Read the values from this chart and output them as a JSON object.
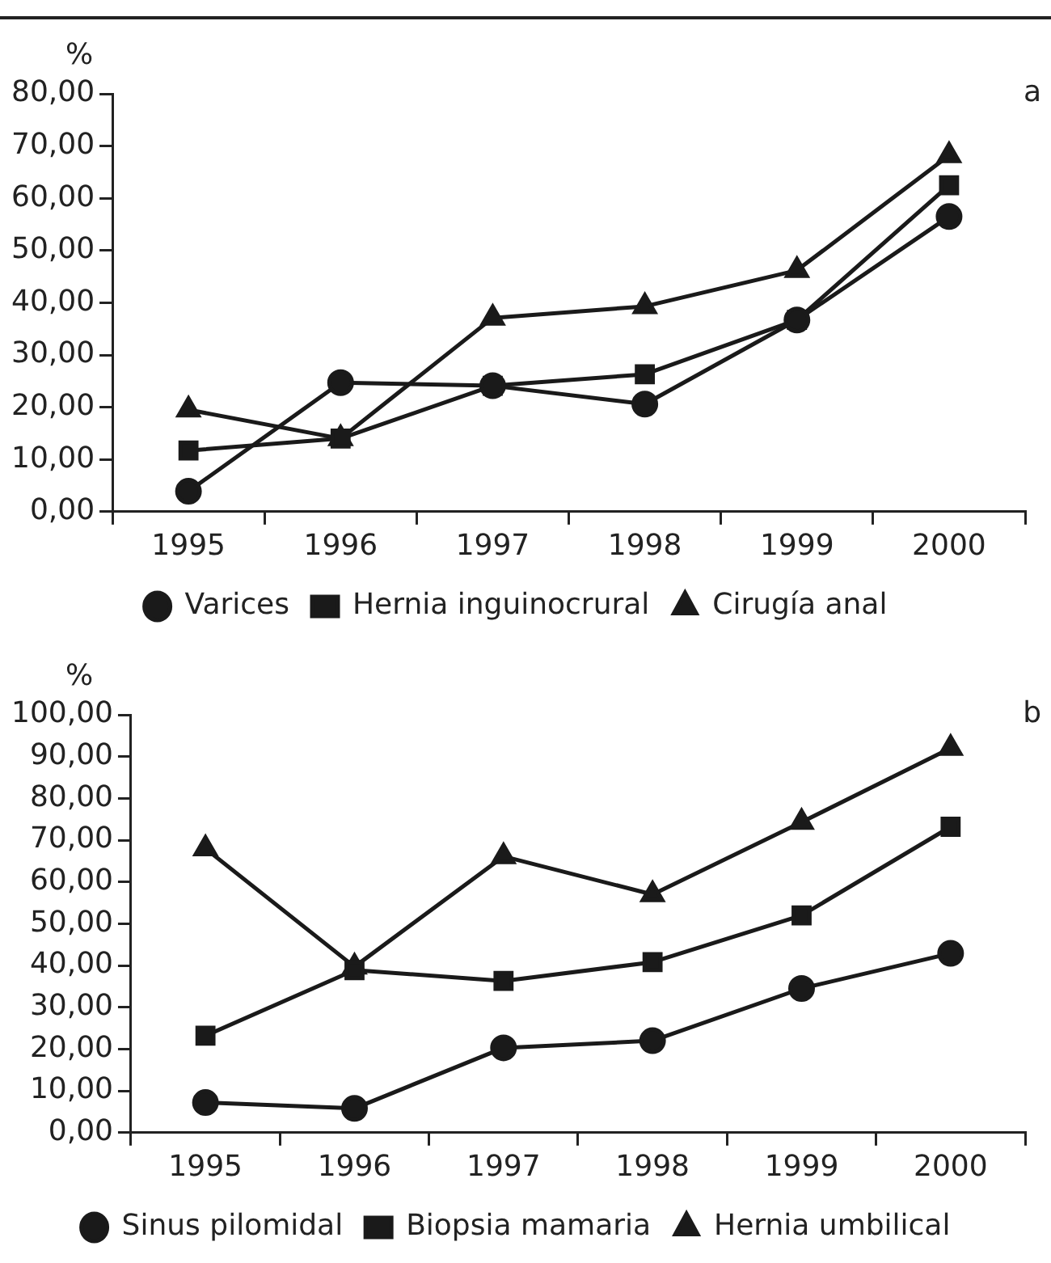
{
  "chart_data": [
    {
      "type": "line",
      "ylabel": "%",
      "annotations": [
        "a"
      ],
      "categories": [
        "1995",
        "1996",
        "1997",
        "1998",
        "1999",
        "2000"
      ],
      "series": [
        {
          "name": "Varices",
          "color": "#1a1a1a",
          "marker": "circle",
          "values": [
            3.9,
            24.7,
            24.1,
            20.6,
            36.7,
            56.5
          ]
        },
        {
          "name": "Hernia inguinocrural",
          "color": "#1a1a1a",
          "marker": "square",
          "values": [
            11.7,
            14.0,
            24.1,
            26.3,
            36.7,
            62.5
          ]
        },
        {
          "name": "Cirugía anal",
          "color": "#1a1a1a",
          "marker": "triangle",
          "values": [
            19.5,
            14.0,
            37.1,
            39.3,
            46.2,
            68.2
          ]
        }
      ],
      "ylim": [
        0,
        80
      ],
      "yticks": [
        {
          "value": 0,
          "label": "0,00"
        },
        {
          "value": 10,
          "label": "10,00"
        },
        {
          "value": 20,
          "label": "20,00"
        },
        {
          "value": 30,
          "label": "30,00"
        },
        {
          "value": 40,
          "label": "40,00"
        },
        {
          "value": 50,
          "label": "50,00"
        },
        {
          "value": 60,
          "label": "60,00"
        },
        {
          "value": 70,
          "label": "70,00"
        },
        {
          "value": 80,
          "label": "80,00"
        }
      ],
      "grid": false,
      "legend": "bottom",
      "line_style": "solid"
    },
    {
      "type": "line",
      "ylabel": "%",
      "annotations": [
        "b"
      ],
      "categories": [
        "1995",
        "1996",
        "1997",
        "1998",
        "1999",
        "2000"
      ],
      "series": [
        {
          "name": "Sinus pilomidal",
          "color": "#1a1a1a",
          "marker": "circle",
          "values": [
            7.2,
            5.8,
            20.3,
            22.0,
            34.5,
            42.9
          ]
        },
        {
          "name": "Biopsia mamaria",
          "color": "#1a1a1a",
          "marker": "square",
          "values": [
            23.2,
            38.9,
            36.3,
            40.8,
            52.0,
            73.2
          ]
        },
        {
          "name": "Hernia umbilical",
          "color": "#1a1a1a",
          "marker": "triangle",
          "values": [
            68.0,
            39.7,
            66.1,
            57.0,
            74.3,
            92.0
          ]
        }
      ],
      "ylim": [
        0,
        100
      ],
      "yticks": [
        {
          "value": 0,
          "label": "0,00"
        },
        {
          "value": 10,
          "label": "10,00"
        },
        {
          "value": 20,
          "label": "20,00"
        },
        {
          "value": 30,
          "label": "30,00"
        },
        {
          "value": 40,
          "label": "40,00"
        },
        {
          "value": 50,
          "label": "50,00"
        },
        {
          "value": 60,
          "label": "60,00"
        },
        {
          "value": 70,
          "label": "70,00"
        },
        {
          "value": 80,
          "label": "80,00"
        },
        {
          "value": 90,
          "label": "90,00"
        },
        {
          "value": 100,
          "label": "100,00"
        }
      ],
      "grid": false,
      "legend": "bottom",
      "line_style": "solid"
    }
  ]
}
